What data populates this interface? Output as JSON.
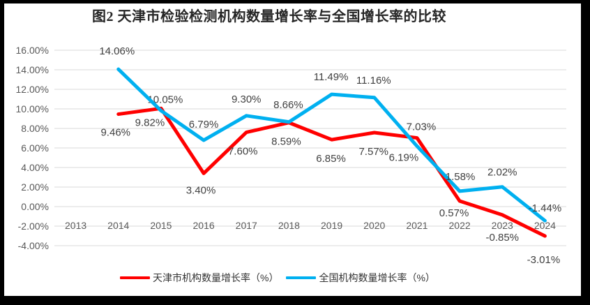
{
  "frame": {
    "border_color": "#000000",
    "background": "#ffffff"
  },
  "chart_data": {
    "type": "line",
    "title": "图2 天津市检验检测机构数量增长率与全国增长率的比较",
    "categories": [
      "2013",
      "2014",
      "2015",
      "2016",
      "2017",
      "2018",
      "2019",
      "2020",
      "2021",
      "2022",
      "2023",
      "2024"
    ],
    "series": [
      {
        "name": "天津市机构数量增长率（%）",
        "color": "#FF0000",
        "values": [
          null,
          9.46,
          10.05,
          3.4,
          7.6,
          8.59,
          6.85,
          7.57,
          7.03,
          0.57,
          -0.85,
          -3.01
        ]
      },
      {
        "name": "全国机构数量增长率（%）",
        "color": "#00B0F0",
        "values": [
          null,
          14.06,
          9.82,
          6.79,
          9.3,
          8.66,
          11.49,
          11.16,
          6.19,
          1.58,
          2.02,
          -1.44
        ]
      }
    ],
    "ylim": [
      -4,
      16
    ],
    "y_step": 2,
    "y_tick_labels": [
      "-4.00%",
      "-2.00%",
      "0.00%",
      "2.00%",
      "4.00%",
      "6.00%",
      "8.00%",
      "10.00%",
      "12.00%",
      "14.00%",
      "16.00%"
    ],
    "grid": true,
    "data_labels": true,
    "legend_position": "bottom",
    "gridline_color": "#D9D9D9",
    "axis_label_color": "#595959",
    "data_label_color": "#404040"
  }
}
